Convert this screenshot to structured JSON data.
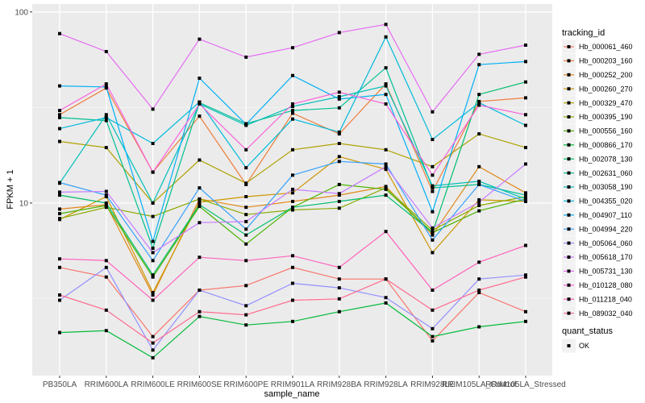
{
  "chart_data": {
    "type": "line",
    "xlabel": "sample_name",
    "ylabel": "FPKM + 1",
    "y_scale": "log10",
    "ylim": [
      1.25,
      110
    ],
    "y_ticks": [
      10,
      100
    ],
    "y_tick_labels": [
      "10",
      "100"
    ],
    "grid": true,
    "legend_position": "right",
    "legend_title": "tracking_id",
    "shape_legend_title": "quant_status",
    "shape_legend_entries": [
      "OK"
    ],
    "categories": [
      "PB350LA",
      "RRIM600LA",
      "RRIM600LE",
      "RRIM600SE",
      "RRIM600PE",
      "RRIM901LA",
      "RRIM928BA",
      "RRIM928LA",
      "RRIM928LE",
      "RRIM105LA_Control",
      "RRIM105LA_Stressed"
    ],
    "category_labels": [
      "PB350LA",
      "RRIM600LA",
      "RRIM600LE",
      "RRIM600SE",
      "RRIM600PE",
      "RRIM901LA",
      "RRIM928BA",
      "RRIM928LA",
      "RRIM928LE",
      "RRIM105LA_Control",
      "RRIM105LA_Stressed"
    ],
    "series": [
      {
        "name": "Hb_000061_460",
        "color": "#F8766D",
        "values": [
          4.6,
          4.1,
          2.0,
          3.5,
          3.7,
          4.6,
          4.0,
          4.0,
          1.9,
          3.4,
          2.7
        ]
      },
      {
        "name": "Hb_000203_160",
        "color": "#EE7F3C",
        "values": [
          29.0,
          40.0,
          14.5,
          28.5,
          12.5,
          29.5,
          23.0,
          42.0,
          11.5,
          34.0,
          35.5
        ]
      },
      {
        "name": "Hb_000252_200",
        "color": "#E0891A",
        "values": [
          9.3,
          9.8,
          3.3,
          10.5,
          9.5,
          10.2,
          11.0,
          12.2,
          6.8,
          15.5,
          11.3
        ]
      },
      {
        "name": "Hb_000260_270",
        "color": "#CD9600",
        "values": [
          8.2,
          10.8,
          3.4,
          10.1,
          10.8,
          11.3,
          17.5,
          15.0,
          5.5,
          10.4,
          10.2
        ]
      },
      {
        "name": "Hb_000329_470",
        "color": "#AFA200",
        "values": [
          21.0,
          19.5,
          10.0,
          16.8,
          12.7,
          19.0,
          20.5,
          19.0,
          15.5,
          23.0,
          19.5
        ]
      },
      {
        "name": "Hb_000395_190",
        "color": "#8AAB00",
        "values": [
          8.3,
          9.5,
          8.5,
          10.5,
          8.7,
          9.2,
          9.4,
          12.0,
          7.2,
          9.7,
          10.8
        ]
      },
      {
        "name": "Hb_000556_160",
        "color": "#4BB400",
        "values": [
          8.8,
          9.7,
          4.1,
          9.6,
          6.1,
          9.5,
          12.5,
          11.8,
          7.0,
          9.1,
          10.5
        ]
      },
      {
        "name": "Hb_000866_170",
        "color": "#00BA38",
        "values": [
          2.1,
          2.15,
          1.55,
          2.55,
          2.3,
          2.4,
          2.7,
          3.0,
          2.0,
          2.25,
          2.4
        ]
      },
      {
        "name": "Hb_002078_130",
        "color": "#00BE6C",
        "values": [
          11.0,
          10.0,
          4.2,
          9.8,
          6.8,
          9.5,
          10.2,
          11.0,
          7.0,
          37.0,
          43.0
        ]
      },
      {
        "name": "Hb_002631_060",
        "color": "#00C094",
        "values": [
          28.0,
          27.0,
          5.8,
          33.5,
          26.0,
          30.5,
          31.5,
          51.0,
          12.0,
          12.5,
          11.0
        ]
      },
      {
        "name": "Hb_003058_190",
        "color": "#00BFB8",
        "values": [
          12.7,
          29.0,
          10.0,
          33.0,
          25.5,
          32.0,
          36.0,
          41.0,
          12.3,
          13.0,
          10.5
        ]
      },
      {
        "name": "Hb_004355_020",
        "color": "#00BBDA",
        "values": [
          24.5,
          28.0,
          20.5,
          33.8,
          15.3,
          27.5,
          23.5,
          74.0,
          21.5,
          33.5,
          25.5
        ]
      },
      {
        "name": "Hb_004907_110",
        "color": "#00B0F6",
        "values": [
          41.0,
          40.5,
          6.3,
          45.0,
          25.8,
          46.5,
          35.0,
          37.0,
          9.0,
          53.0,
          55.0
        ]
      },
      {
        "name": "Hb_004994_220",
        "color": "#35A2FF",
        "values": [
          12.8,
          11.0,
          5.0,
          12.0,
          7.3,
          14.0,
          16.5,
          16.0,
          6.4,
          12.5,
          10.2
        ]
      },
      {
        "name": "Hb_005064_060",
        "color": "#9590FF",
        "values": [
          3.1,
          4.6,
          1.7,
          3.5,
          2.9,
          3.8,
          3.6,
          3.2,
          2.2,
          4.0,
          4.2
        ]
      },
      {
        "name": "Hb_005618_170",
        "color": "#C77CFF",
        "values": [
          11.4,
          11.5,
          5.5,
          7.9,
          8.0,
          11.8,
          11.2,
          15.5,
          7.4,
          10.1,
          16.0
        ]
      },
      {
        "name": "Hb_005731_130",
        "color": "#E76BF3",
        "values": [
          77.0,
          62.0,
          31.0,
          72.0,
          58.0,
          65.0,
          78.0,
          86.0,
          30.0,
          60.0,
          67.0
        ]
      },
      {
        "name": "Hb_010128_080",
        "color": "#FA62DB",
        "values": [
          30.5,
          42.0,
          14.5,
          33.0,
          19.0,
          33.0,
          38.0,
          33.0,
          14.0,
          32.5,
          29.0
        ]
      },
      {
        "name": "Hb_011218_040",
        "color": "#FF62BC",
        "values": [
          5.1,
          5.0,
          3.1,
          5.2,
          5.0,
          5.3,
          4.6,
          7.1,
          3.5,
          4.9,
          6.0
        ]
      },
      {
        "name": "Hb_089032_040",
        "color": "#FF6C91",
        "values": [
          3.3,
          2.75,
          1.85,
          2.7,
          2.6,
          3.1,
          3.15,
          4.0,
          2.75,
          3.5,
          4.1
        ]
      }
    ]
  }
}
